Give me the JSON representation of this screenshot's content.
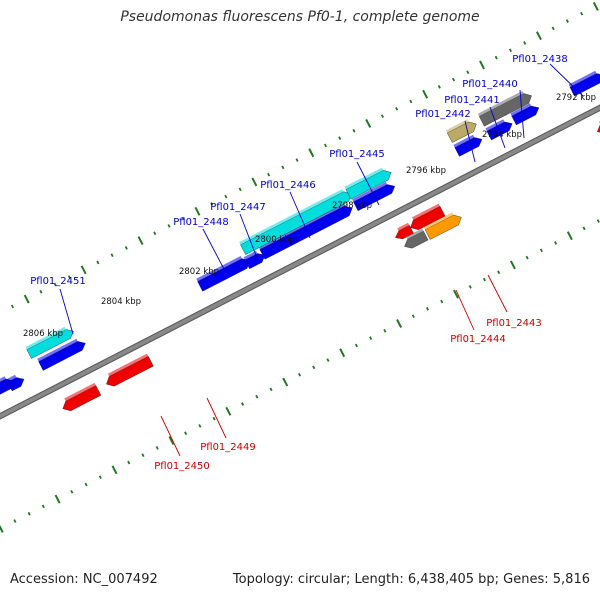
{
  "title": "Pseudomonas fluorescens Pf0-1, complete genome",
  "footer": {
    "accession": "Accession: NC_007492",
    "summary": "Topology: circular; Length: 6,438,405 bp; Genes: 5,816"
  },
  "colors": {
    "backbone": "#888888",
    "tick": "#227722",
    "label_blue": "#0000cc",
    "label_red": "#cc0000",
    "blue": "#0000ee",
    "cyan": "#00dddd",
    "red": "#ee0000",
    "orange": "#ff9900",
    "gray": "#666666",
    "tan": "#bbaa66"
  },
  "ticks": [
    {
      "label": "2792 kbp"
    },
    {
      "label": "2794 kbp"
    },
    {
      "label": "2796 kbp"
    },
    {
      "label": "2798 kbp"
    },
    {
      "label": "2800 kbp"
    },
    {
      "label": "2802 kbp"
    },
    {
      "label": "2804 kbp"
    },
    {
      "label": "2806 kbp"
    }
  ],
  "gene_labels": [
    {
      "text": "Pfl01_2438",
      "strand": "top"
    },
    {
      "text": "Pfl01_2440",
      "strand": "top"
    },
    {
      "text": "Pfl01_2441",
      "strand": "top"
    },
    {
      "text": "Pfl01_2442",
      "strand": "top"
    },
    {
      "text": "Pfl01_2445",
      "strand": "top"
    },
    {
      "text": "Pfl01_2446",
      "strand": "top"
    },
    {
      "text": "Pfl01_2447",
      "strand": "top"
    },
    {
      "text": "Pfl01_2448",
      "strand": "top"
    },
    {
      "text": "Pfl01_2451",
      "strand": "top"
    },
    {
      "text": "Pfl01_2443",
      "strand": "bottom"
    },
    {
      "text": "Pfl01_2444",
      "strand": "bottom"
    },
    {
      "text": "Pfl01_2449",
      "strand": "bottom"
    },
    {
      "text": "Pfl01_2450",
      "strand": "bottom"
    }
  ]
}
